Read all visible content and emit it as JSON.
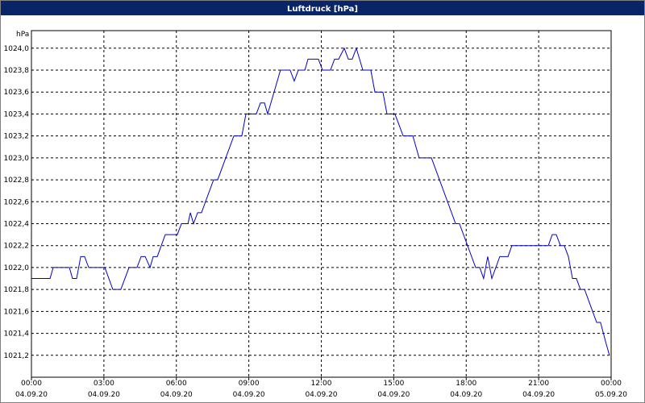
{
  "chart_data": {
    "type": "line",
    "title": "Luftdruck [hPa]",
    "y_label": "hPa",
    "x": [
      0,
      0.77,
      0.9,
      1.57,
      1.7,
      1.87,
      2.04,
      2.2,
      2.37,
      3.04,
      3.37,
      3.7,
      4.04,
      4.37,
      4.54,
      4.71,
      4.91,
      5.04,
      5.21,
      5.54,
      6.04,
      6.21,
      6.48,
      6.58,
      6.71,
      6.88,
      7.04,
      7.54,
      7.71,
      8.38,
      8.71,
      8.88,
      9.31,
      9.48,
      9.65,
      9.78,
      10.31,
      10.71,
      10.88,
      11.05,
      11.32,
      11.45,
      11.88,
      12.05,
      12.38,
      12.55,
      12.72,
      12.95,
      13.12,
      13.28,
      13.45,
      13.72,
      14.05,
      14.22,
      14.55,
      14.72,
      15.05,
      15.39,
      15.79,
      16.05,
      16.56,
      17.56,
      17.72,
      18.39,
      18.56,
      18.72,
      18.89,
      19.06,
      19.39,
      19.73,
      19.89,
      21.4,
      21.56,
      21.73,
      21.9,
      22.06,
      22.23,
      22.4,
      22.56,
      22.73,
      22.9,
      23.4,
      23.56,
      23.8,
      23.93
    ],
    "series": [
      {
        "color": "#0000c8",
        "values": [
          1021.9,
          1021.9,
          1022.0,
          1022.0,
          1021.9,
          1021.9,
          1022.1,
          1022.1,
          1022.0,
          1022.0,
          1021.8,
          1021.8,
          1022.0,
          1022.0,
          1022.1,
          1022.1,
          1022.0,
          1022.1,
          1022.1,
          1022.3,
          1022.3,
          1022.4,
          1022.4,
          1022.5,
          1022.4,
          1022.5,
          1022.5,
          1022.8,
          1022.8,
          1023.2,
          1023.2,
          1023.4,
          1023.4,
          1023.5,
          1023.5,
          1023.4,
          1023.8,
          1023.8,
          1023.7,
          1023.8,
          1023.8,
          1023.9,
          1023.9,
          1023.8,
          1023.8,
          1023.9,
          1023.9,
          1024.0,
          1023.9,
          1023.9,
          1024.0,
          1023.8,
          1023.8,
          1023.6,
          1023.6,
          1023.4,
          1023.4,
          1023.2,
          1023.2,
          1023.0,
          1023.0,
          1022.4,
          1022.4,
          1022.0,
          1022.0,
          1021.9,
          1022.1,
          1021.9,
          1022.1,
          1022.1,
          1022.2,
          1022.2,
          1022.3,
          1022.3,
          1022.2,
          1022.2,
          1022.1,
          1021.9,
          1021.9,
          1021.8,
          1021.8,
          1021.5,
          1021.5,
          1021.3,
          1021.2
        ]
      }
    ],
    "xlim": [
      0,
      24
    ],
    "xticks": [
      {
        "value": 0,
        "label": "00:00 04.09.20"
      },
      {
        "value": 3,
        "label": "03:00 04.09.20"
      },
      {
        "value": 6,
        "label": "06:00 04.09.20"
      },
      {
        "value": 9,
        "label": "09:00 04.09.20"
      },
      {
        "value": 12,
        "label": "12:00 04.09.20"
      },
      {
        "value": 15,
        "label": "15:00 04.09.20"
      },
      {
        "value": 18,
        "label": "18:00 04.09.20"
      },
      {
        "value": 21,
        "label": "21:00 04.09.20"
      },
      {
        "value": 24,
        "label": "00:00 05.09.20"
      }
    ],
    "ylim": [
      1021.0,
      1024.16
    ],
    "yticks": [
      {
        "value": 1021.2,
        "label": "1021,2"
      },
      {
        "value": 1021.4,
        "label": "1021,4"
      },
      {
        "value": 1021.6,
        "label": "1021,6"
      },
      {
        "value": 1021.8,
        "label": "1021,8"
      },
      {
        "value": 1022.0,
        "label": "1022,0"
      },
      {
        "value": 1022.2,
        "label": "1022,2"
      },
      {
        "value": 1022.4,
        "label": "1022,4"
      },
      {
        "value": 1022.6,
        "label": "1022,6"
      },
      {
        "value": 1022.8,
        "label": "1022,8"
      },
      {
        "value": 1023.0,
        "label": "1023,0"
      },
      {
        "value": 1023.2,
        "label": "1023,2"
      },
      {
        "value": 1023.4,
        "label": "1023,4"
      },
      {
        "value": 1023.6,
        "label": "1023,6"
      },
      {
        "value": 1023.8,
        "label": "1023,8"
      },
      {
        "value": 1024.0,
        "label": "1024,0"
      }
    ],
    "grid": true
  }
}
